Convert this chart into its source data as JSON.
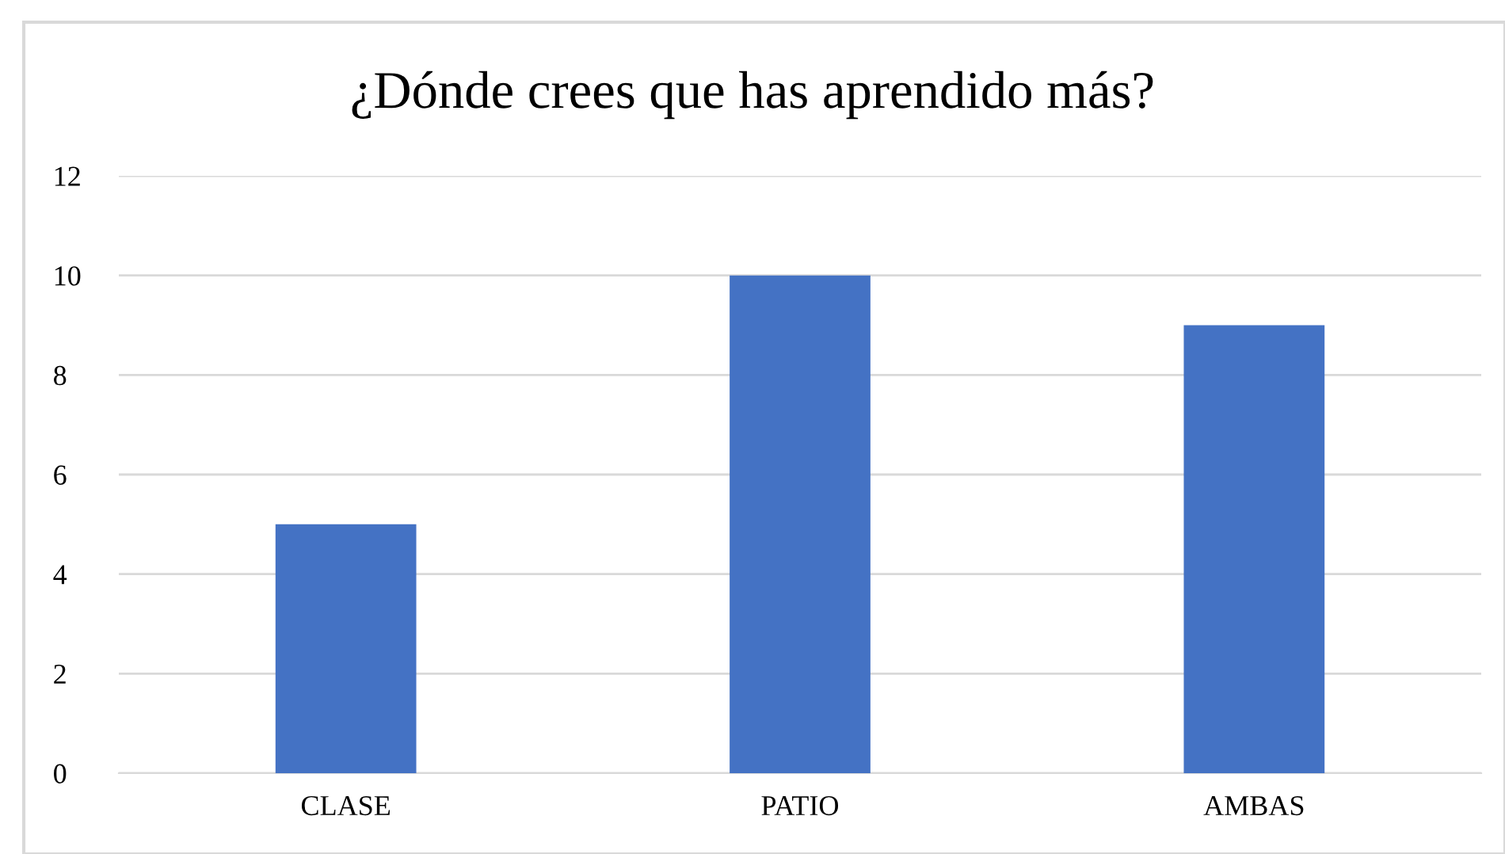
{
  "chart_data": {
    "type": "bar",
    "title": "¿Dónde crees que has aprendido más?",
    "categories": [
      "CLASE",
      "PATIO",
      "AMBAS"
    ],
    "values": [
      5,
      10,
      9
    ],
    "color": "#4472c4",
    "ylim": [
      0,
      12
    ],
    "yticks": [
      0,
      2,
      4,
      6,
      8,
      10,
      12
    ],
    "grid": "y"
  }
}
